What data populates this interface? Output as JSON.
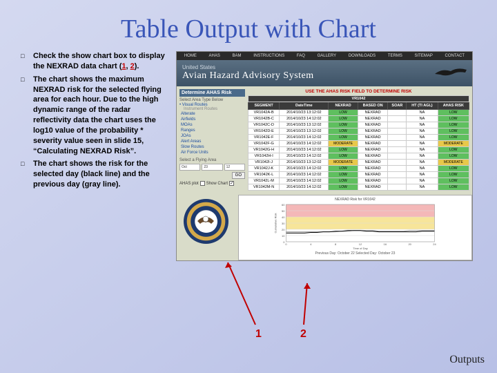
{
  "title": "Table Output with Chart",
  "bullets": [
    "Check the show chart box to display the NEXRAD data chart (",
    "The chart shows the maximum NEXRAD risk for the selected flying area for each hour.   Due to the high dynamic range of the radar reflectivity data the chart uses the log10 value of the probability * severity value seen in slide 15, “Calculating NEXRAD Risk”.",
    "The chart shows the risk for the selected day (black line) and the previous day (gray line)."
  ],
  "bullet1_suffix": ").",
  "ref1": "1",
  "ref2": "2",
  "ann": {
    "one": "1",
    "two": "2"
  },
  "footer": "Outputs",
  "app": {
    "nav": [
      "HOME",
      "AHAS",
      "BAM",
      "INSTRUCTIONS",
      "FAQ",
      "GALLERY",
      "DOWNLOADS",
      "TERMS",
      "SITEMAP",
      "CONTACT"
    ],
    "banner_sub": "United States",
    "banner_title": "Avian Hazard Advisory System",
    "panel_head": "Determine AHAS Risk",
    "panel_sec1": "Select Area Type Below",
    "sec1_mode": "• Visual Routes",
    "sec1_sub": "Instrument Routes",
    "opts": [
      "Alterate",
      "Airfields",
      "MOAs",
      "Ranges",
      "JOAs",
      "Alert Areas",
      "Slow Routes",
      "Air Force Units"
    ],
    "panel_sec2": "Select a Flying Area",
    "inp_labels": {
      "month": "Select Month",
      "day": "Select Day",
      "hour": "Select Hour / R"
    },
    "inp_vals": {
      "month": "Oct",
      "day": "23",
      "hour": "12"
    },
    "go": "GO",
    "chk_plot": "AHAS plot",
    "chk_chart": "Show Chart",
    "risk_note": "USE THE AHAS RISK FIELD TO DETERMINE RISK",
    "route_hdr": "VR1042",
    "cols": [
      "SEGMENT",
      "DateTime",
      "NEXRAD",
      "BASED ON",
      "SOAR",
      "HT (TI AGL)",
      "AHAS RISK"
    ],
    "rows": [
      [
        "VR1042A-B",
        "2014/10/23 13:12:02",
        "LOW",
        "NEXRAD",
        "",
        "NA",
        "LOW"
      ],
      [
        "VR1042B-C",
        "2014/10/23 14:12:02",
        "LOW",
        "NEXRAD",
        "",
        "NA",
        "LOW"
      ],
      [
        "VR1042C-D",
        "2014/10/23 13:12:02",
        "LOW",
        "NEXRAD",
        "",
        "NA",
        "LOW"
      ],
      [
        "VR1042D-E",
        "2014/10/23 13:12:02",
        "LOW",
        "NEXRAD",
        "",
        "NA",
        "LOW"
      ],
      [
        "VR1042E-F",
        "2014/10/23 14:12:02",
        "LOW",
        "NEXRAD",
        "",
        "NA",
        "LOW"
      ],
      [
        "VR1042F-G",
        "2014/10/23 14:12:02",
        "MODERATE",
        "NEXRAD",
        "",
        "NA",
        "MODERATE"
      ],
      [
        "VR1042G-H",
        "2014/10/23 14:12:02",
        "LOW",
        "NEXRAD",
        "",
        "NA",
        "LOW"
      ],
      [
        "VR1042H-I",
        "2014/10/23 14:12:02",
        "LOW",
        "NEXRAD",
        "",
        "NA",
        "LOW"
      ],
      [
        "VR1042I-J",
        "2014/10/23 13:12:02",
        "MODERATE",
        "NEXRAD",
        "",
        "NA",
        "MODERATE"
      ],
      [
        "VR1042J-K",
        "2014/10/23 14:12:02",
        "LOW",
        "NEXRAD",
        "",
        "NA",
        "LOW"
      ],
      [
        "VR1042K-L",
        "2014/10/23 14:12:02",
        "LOW",
        "NEXRAD",
        "",
        "NA",
        "LOW"
      ],
      [
        "VR1042L-M",
        "2014/10/23 14:12:02",
        "LOW",
        "NEXRAD",
        "",
        "NA",
        "LOW"
      ],
      [
        "VR1042M-N",
        "2014/10/23 14:12:02",
        "LOW",
        "NEXRAD",
        "",
        "NA",
        "LOW"
      ]
    ],
    "chart": {
      "title": "NEXRAD Risk for VR1042",
      "ylabel": "Cumulative Risk",
      "xlabel": "Time of Day",
      "ylim": [
        0,
        60
      ],
      "yticks": [
        0,
        10,
        20,
        30,
        40,
        50,
        60
      ],
      "xlim": [
        0,
        24
      ],
      "colors": {
        "mod_band": "#f7e59a",
        "sev_band": "#f4b8b8",
        "black_line": "#000000",
        "gray_line": "#999999",
        "grid": "#dddddd",
        "bg": "#ffffff"
      },
      "black_y": [
        14,
        14,
        14,
        14,
        15,
        15,
        16,
        16,
        17,
        17,
        18,
        18,
        18,
        17,
        17,
        16,
        16,
        16,
        16,
        16,
        16,
        16,
        17,
        17,
        17
      ],
      "gray_y": [
        16,
        16,
        16,
        16,
        16,
        16,
        16,
        16,
        16,
        17,
        17,
        18,
        18,
        18,
        18,
        17,
        17,
        17,
        17,
        17,
        18,
        18,
        18,
        18,
        18
      ],
      "caption": "Previous Day: October 22   Selected Day: October 23"
    }
  }
}
